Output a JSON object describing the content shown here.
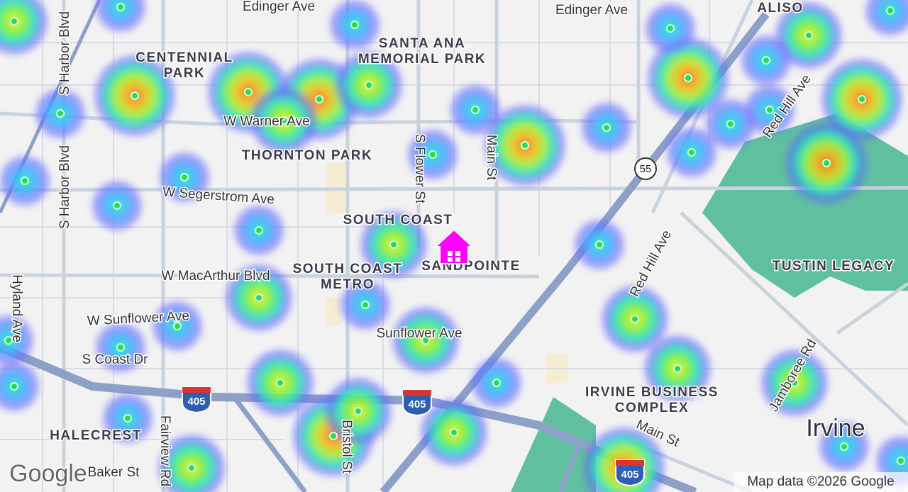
{
  "map": {
    "areas": [
      "CENTENNIAL",
      "PARK",
      "SANTA ANA",
      "MEMORIAL PARK",
      "THORNTON PARK",
      "SOUTH COAST",
      "SOUTH COAST",
      "METRO",
      "SANDPOINTE",
      "ALISO",
      "TUSTIN LEGACY",
      "IRVINE BUSINESS",
      "COMPLEX",
      "HALECREST"
    ],
    "streets": [
      "Edinger Ave",
      "Edinger Ave",
      "S Harbor Blvd",
      "S Harbor Blvd",
      "W Warner Ave",
      "W Segerstrom Ave",
      "S Flower St",
      "Main St",
      "W MacArthur Blvd",
      "W Sunflower Ave",
      "S Coast Dr",
      "Sunflower Ave",
      "Hyland Ave",
      "Fairview Rd",
      "Bristol St",
      "Baker St",
      "Red Hill Ave",
      "Red Hill Ave",
      "Jamboree Rd",
      "Main St"
    ],
    "shields": [
      "405",
      "405",
      "405",
      "55"
    ],
    "city": "Irvine",
    "attribution": "Map data ©2026 Google",
    "logo": "Google"
  }
}
